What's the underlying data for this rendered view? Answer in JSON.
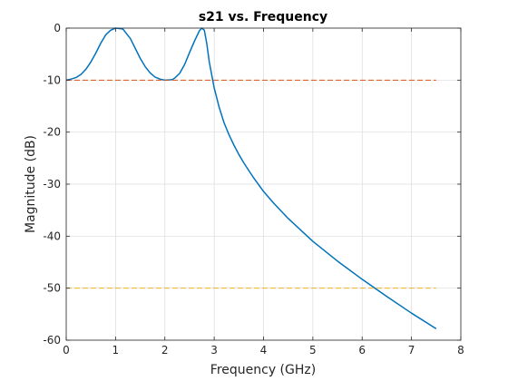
{
  "chart_data": {
    "type": "line",
    "title": "s21 vs. Frequency",
    "xlabel": "Frequency (GHz)",
    "ylabel": "Magnitude (dB)",
    "xlim": [
      0,
      8
    ],
    "ylim": [
      -60,
      0
    ],
    "xticks": [
      0,
      1,
      2,
      3,
      4,
      5,
      6,
      7,
      8
    ],
    "yticks": [
      0,
      -10,
      -20,
      -30,
      -40,
      -50,
      -60
    ],
    "grid": true,
    "legend": "none",
    "series": [
      {
        "color": "#0072bd",
        "style": "solid",
        "x": [
          0,
          0.1,
          0.2,
          0.3,
          0.4,
          0.5,
          0.6,
          0.7,
          0.8,
          0.9,
          1.0,
          1.1,
          1.15,
          1.2,
          1.3,
          1.4,
          1.5,
          1.6,
          1.7,
          1.8,
          1.9,
          2.0,
          2.1,
          2.15,
          2.2,
          2.3,
          2.4,
          2.5,
          2.6,
          2.7,
          2.75,
          2.8,
          2.85,
          2.9,
          3.0,
          3.1,
          3.2,
          3.3,
          3.4,
          3.5,
          3.6,
          3.8,
          4.0,
          4.2,
          4.5,
          5.0,
          5.5,
          6.0,
          6.5,
          7.0,
          7.5
        ],
        "y": [
          -10.0,
          -9.8,
          -9.5,
          -8.9,
          -7.9,
          -6.5,
          -4.8,
          -2.9,
          -1.3,
          -0.4,
          0.0,
          -0.1,
          -0.2,
          -0.8,
          -2.0,
          -3.9,
          -5.8,
          -7.4,
          -8.6,
          -9.4,
          -9.8,
          -10.0,
          -9.95,
          -9.9,
          -9.6,
          -8.7,
          -7.0,
          -4.7,
          -2.5,
          -0.5,
          0.0,
          -0.4,
          -3.0,
          -6.5,
          -11.5,
          -15.2,
          -18.2,
          -20.5,
          -22.5,
          -24.3,
          -25.9,
          -28.8,
          -31.4,
          -33.6,
          -36.6,
          -41.0,
          -44.8,
          -48.3,
          -51.6,
          -54.8,
          -57.8
        ]
      },
      {
        "color": "#d95319",
        "style": "dashed",
        "x": [
          0,
          7.5
        ],
        "y": [
          -10,
          -10
        ]
      },
      {
        "color": "#edb120",
        "style": "dashed",
        "x": [
          0,
          7.5
        ],
        "y": [
          -50,
          -50
        ]
      }
    ]
  }
}
